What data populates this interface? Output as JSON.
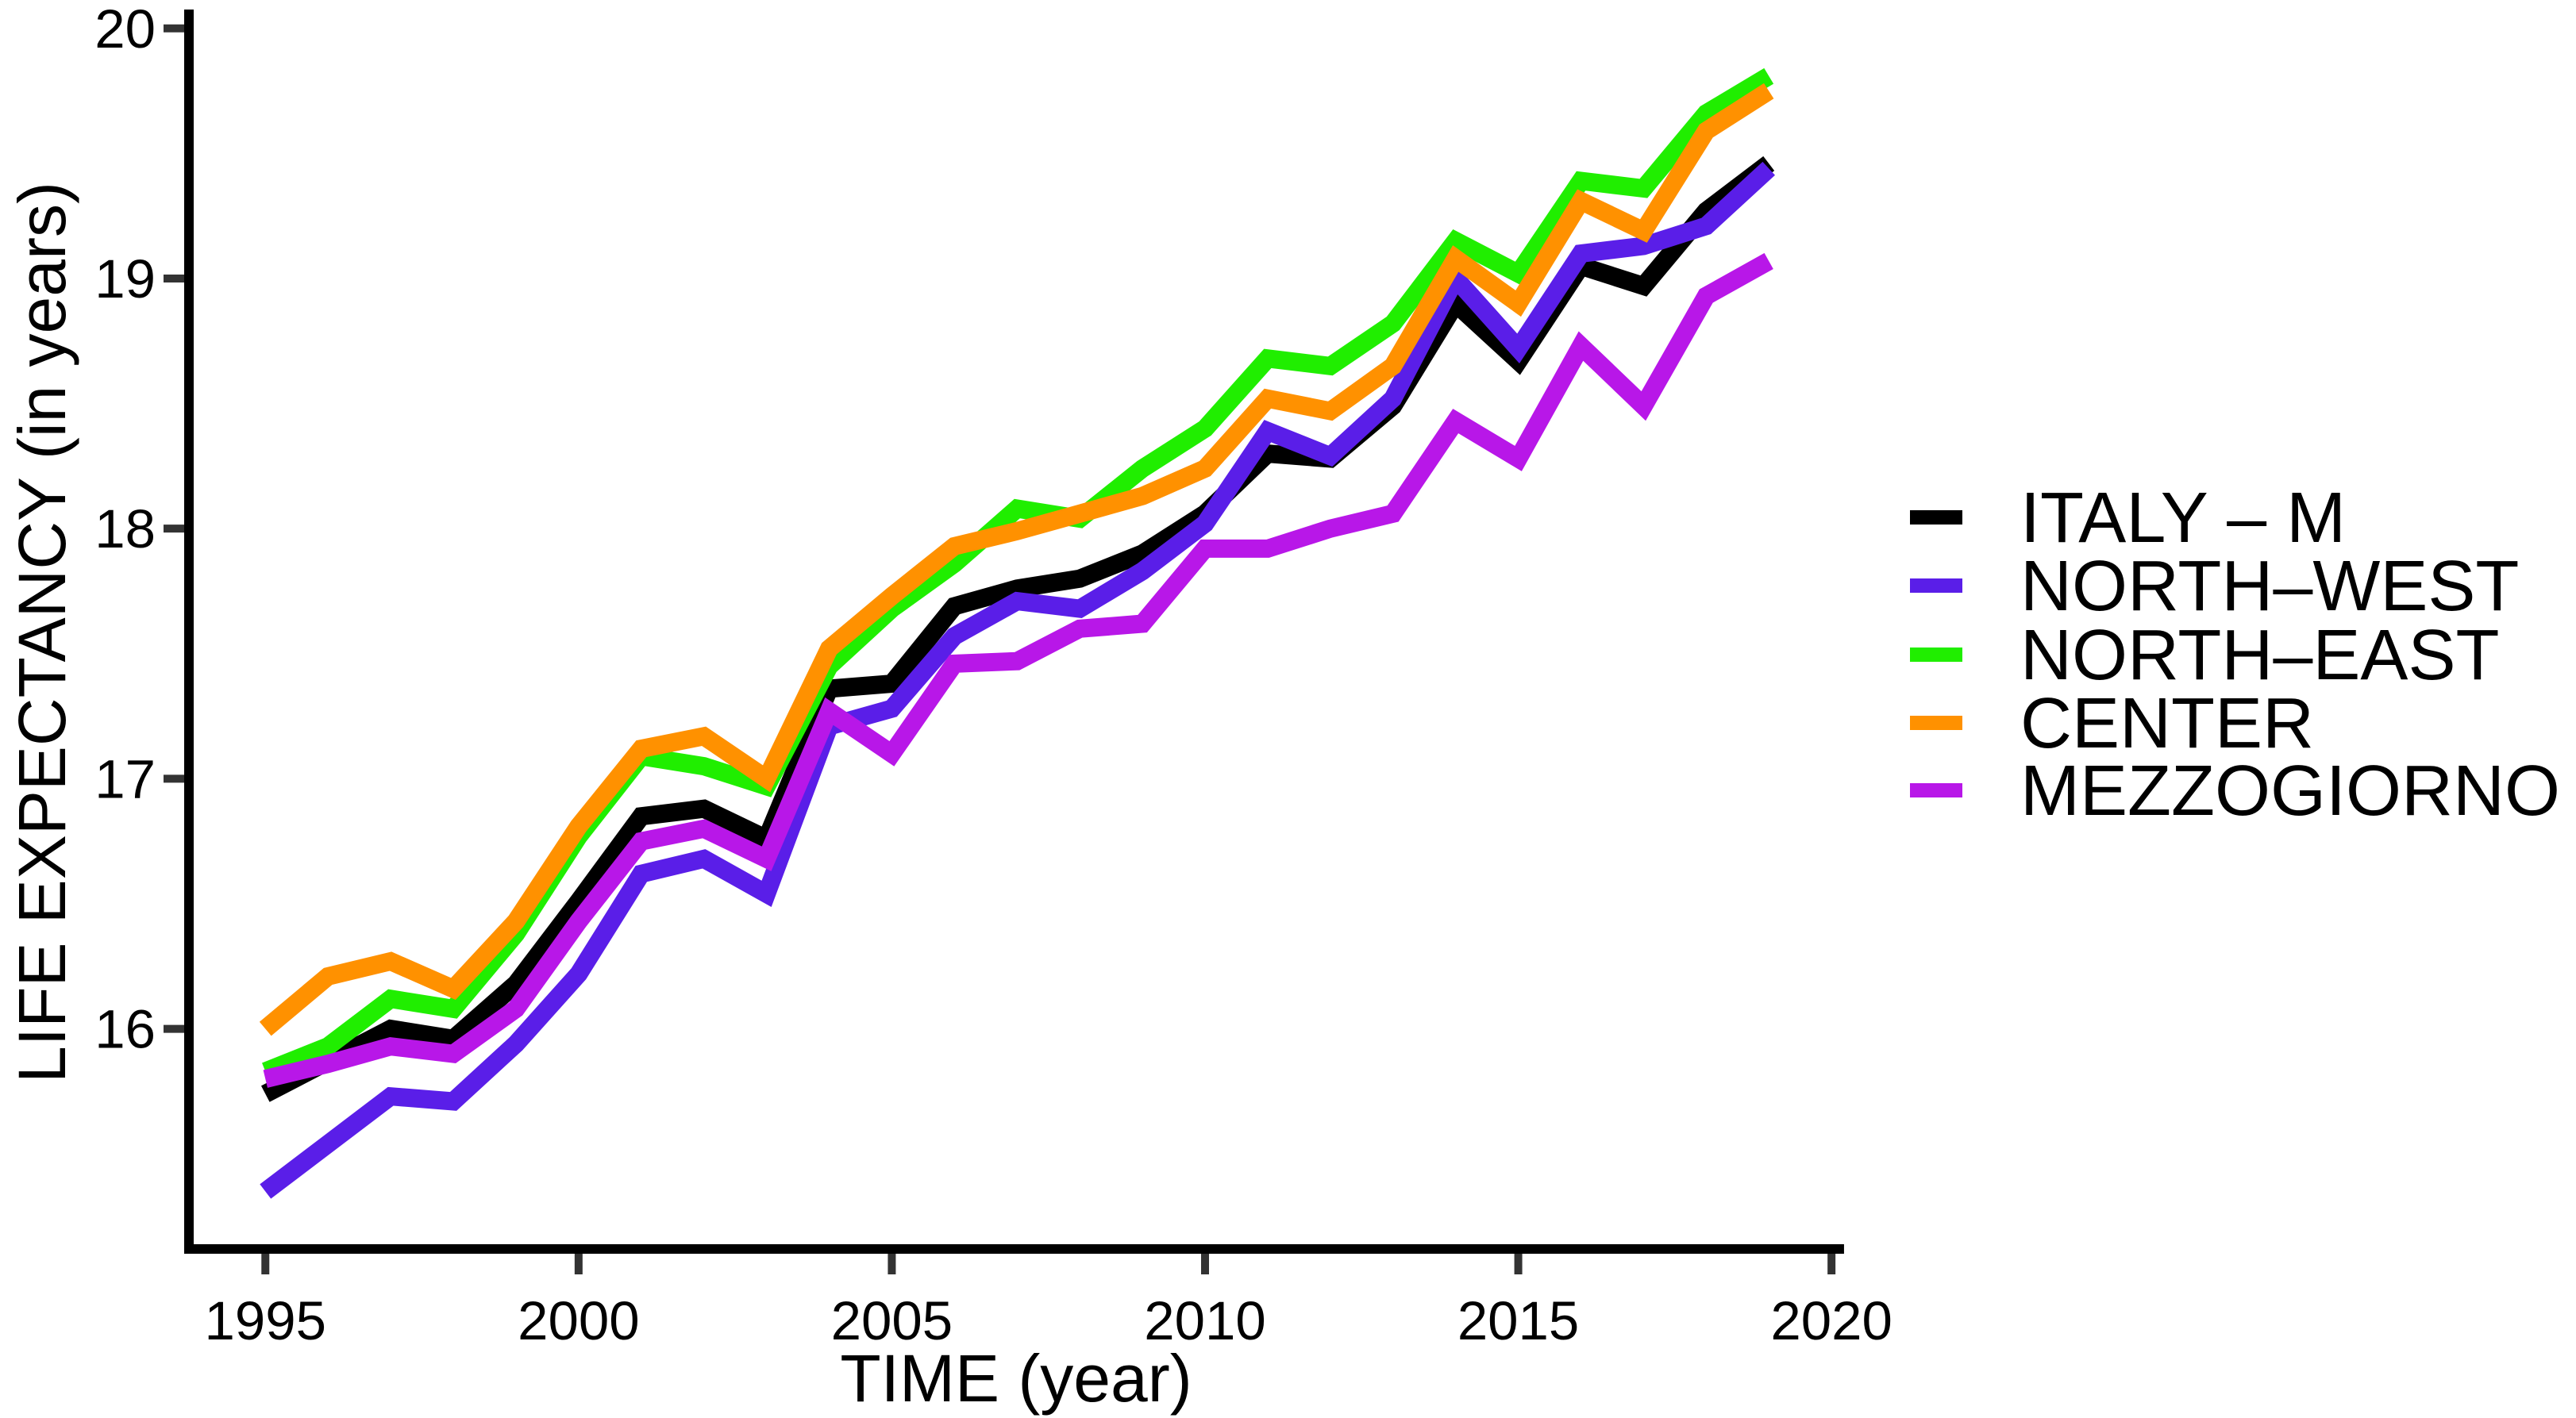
{
  "chart_data": {
    "type": "line",
    "title": "",
    "xlabel": "TIME (year)",
    "ylabel": "LIFE EXPECTANCY (in years)",
    "grid": false,
    "legend_position": "right-middle",
    "x": [
      1995,
      1996,
      1997,
      1998,
      1999,
      2000,
      2001,
      2002,
      2003,
      2004,
      2005,
      2006,
      2007,
      2008,
      2009,
      2010,
      2011,
      2012,
      2013,
      2014,
      2015,
      2016,
      2017,
      2018,
      2019
    ],
    "x_ticks": [
      1995,
      2000,
      2005,
      2010,
      2015,
      2020
    ],
    "y_ticks": [
      16,
      17,
      18,
      19,
      20
    ],
    "xlim": [
      1993.78,
      2021.43
    ],
    "ylim": [
      15.12,
      20.05
    ],
    "series": [
      {
        "name": "ITALY – M",
        "color": "#000000",
        "values": [
          15.74,
          15.87,
          16.0,
          15.96,
          16.18,
          16.51,
          16.85,
          16.88,
          16.76,
          17.36,
          17.38,
          17.69,
          17.76,
          17.8,
          17.9,
          18.06,
          18.3,
          18.28,
          18.49,
          18.9,
          18.67,
          19.05,
          18.97,
          19.27,
          19.46
        ]
      },
      {
        "name": "NORTH–WEST",
        "color": "#5A1EE8",
        "values": [
          15.35,
          15.54,
          15.73,
          15.71,
          15.94,
          16.22,
          16.62,
          16.68,
          16.54,
          17.21,
          17.28,
          17.57,
          17.71,
          17.68,
          17.83,
          18.02,
          18.39,
          18.29,
          18.52,
          19.0,
          18.72,
          19.1,
          19.13,
          19.21,
          19.44
        ]
      },
      {
        "name": "NORTH–EAST",
        "color": "#20EE00",
        "values": [
          15.83,
          15.93,
          16.12,
          16.08,
          16.38,
          16.77,
          17.09,
          17.05,
          16.97,
          17.45,
          17.68,
          17.86,
          18.08,
          18.04,
          18.24,
          18.4,
          18.68,
          18.65,
          18.82,
          19.15,
          19.02,
          19.39,
          19.36,
          19.66,
          19.81
        ]
      },
      {
        "name": "CENTER",
        "color": "#FF9100",
        "values": [
          16.0,
          16.21,
          16.27,
          16.16,
          16.43,
          16.81,
          17.12,
          17.17,
          17.0,
          17.52,
          17.73,
          17.93,
          17.99,
          18.06,
          18.13,
          18.24,
          18.52,
          18.47,
          18.65,
          19.08,
          18.9,
          19.31,
          19.19,
          19.59,
          19.75
        ]
      },
      {
        "name": "MEZZOGIORNO",
        "color": "#B817E8",
        "values": [
          15.8,
          15.86,
          15.93,
          15.9,
          16.08,
          16.43,
          16.75,
          16.8,
          16.68,
          17.27,
          17.1,
          17.46,
          17.47,
          17.6,
          17.62,
          17.92,
          17.92,
          18.0,
          18.06,
          18.43,
          18.28,
          18.73,
          18.49,
          18.93,
          19.07
        ]
      }
    ],
    "axis_color": "#000000",
    "tick_color": "#333333"
  }
}
